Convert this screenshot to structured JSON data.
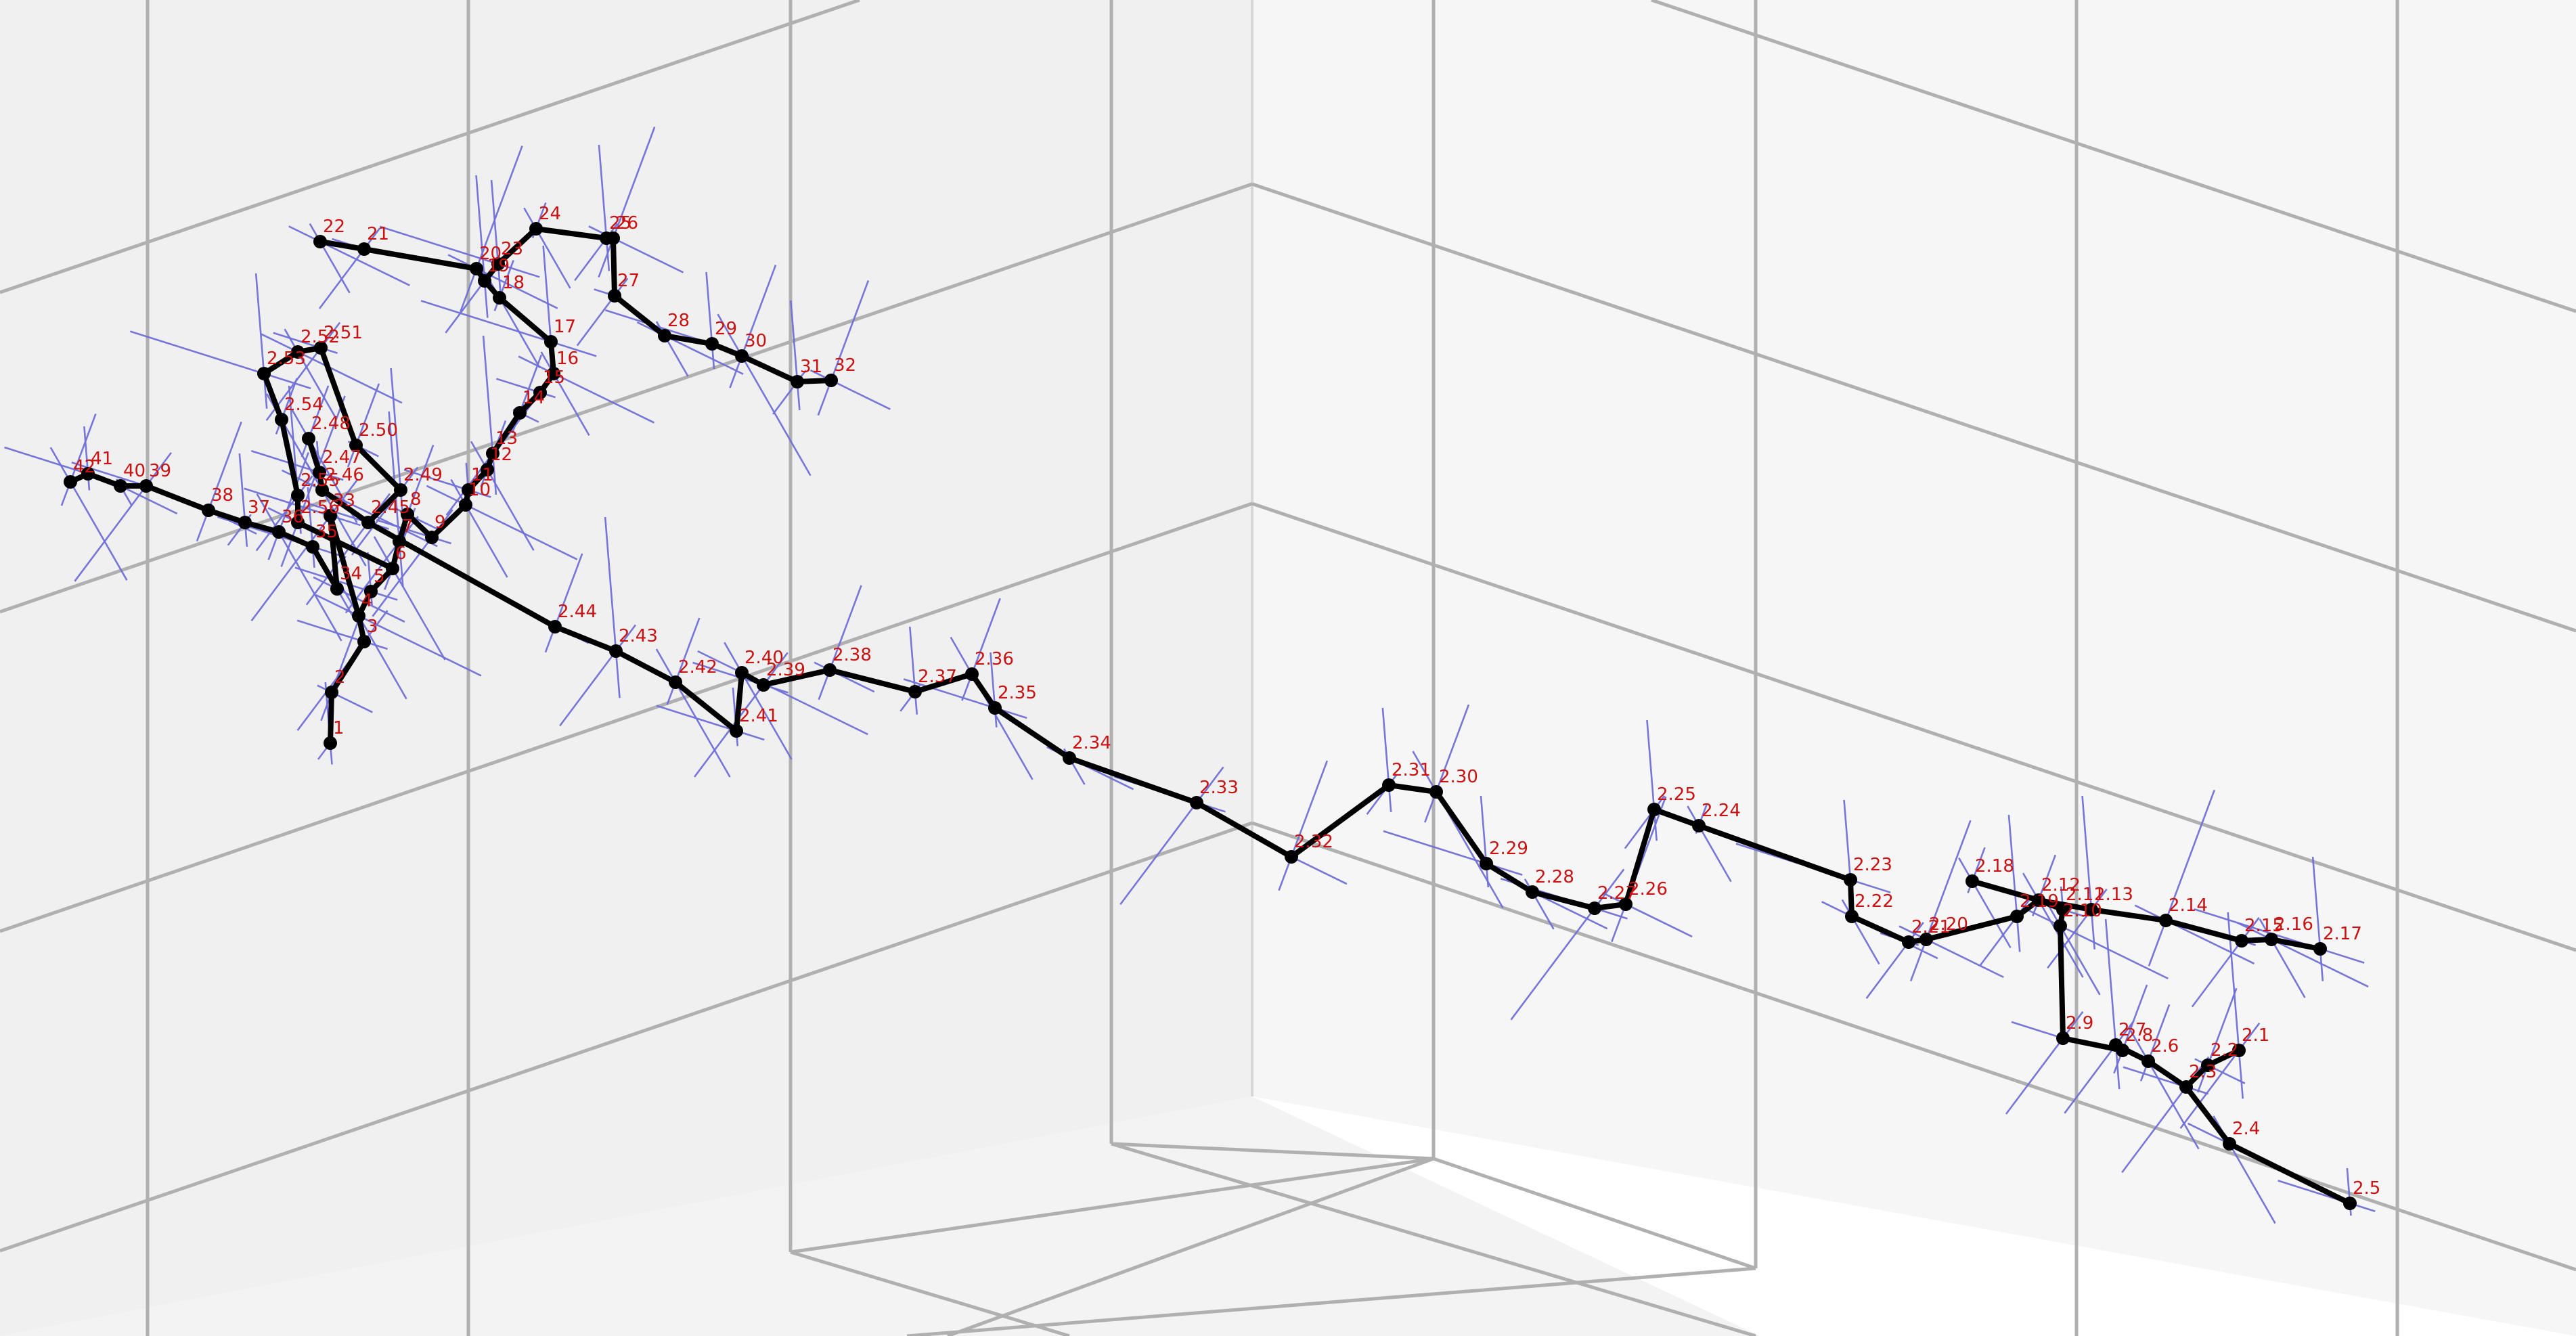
{
  "nodes": [
    {
      "id": "1",
      "label": "1"
    },
    {
      "id": "2",
      "label": "2"
    },
    {
      "id": "3",
      "label": "3"
    },
    {
      "id": "4",
      "label": "4"
    },
    {
      "id": "5",
      "label": "5"
    },
    {
      "id": "6",
      "label": "6"
    },
    {
      "id": "7",
      "label": "7"
    },
    {
      "id": "8",
      "label": "8"
    },
    {
      "id": "9",
      "label": "9"
    },
    {
      "id": "10",
      "label": "10"
    },
    {
      "id": "11",
      "label": "11"
    },
    {
      "id": "12",
      "label": "12"
    },
    {
      "id": "13",
      "label": "13"
    },
    {
      "id": "14",
      "label": "14"
    },
    {
      "id": "15",
      "label": "15"
    },
    {
      "id": "16",
      "label": "16"
    },
    {
      "id": "17",
      "label": "17"
    },
    {
      "id": "18",
      "label": "18"
    },
    {
      "id": "19",
      "label": "19"
    },
    {
      "id": "20",
      "label": "20"
    },
    {
      "id": "21",
      "label": "21"
    },
    {
      "id": "22",
      "label": "22"
    },
    {
      "id": "23",
      "label": "23"
    },
    {
      "id": "24",
      "label": "24"
    },
    {
      "id": "25",
      "label": "25"
    },
    {
      "id": "26",
      "label": "26"
    },
    {
      "id": "27",
      "label": "27"
    },
    {
      "id": "28",
      "label": "28"
    },
    {
      "id": "29",
      "label": "29"
    },
    {
      "id": "30",
      "label": "30"
    },
    {
      "id": "31",
      "label": "31"
    },
    {
      "id": "32",
      "label": "32"
    },
    {
      "id": "33",
      "label": "33"
    },
    {
      "id": "34",
      "label": "34"
    },
    {
      "id": "35",
      "label": "35"
    },
    {
      "id": "36",
      "label": "36"
    },
    {
      "id": "37",
      "label": "37"
    },
    {
      "id": "38",
      "label": "38"
    },
    {
      "id": "39",
      "label": "39"
    },
    {
      "id": "40",
      "label": "40"
    },
    {
      "id": "41",
      "label": "41"
    },
    {
      "id": "42",
      "label": "42"
    },
    {
      "id": "2.1",
      "label": "2.1"
    },
    {
      "id": "2.2",
      "label": "2.2"
    },
    {
      "id": "2.3",
      "label": "2.3"
    },
    {
      "id": "2.4",
      "label": "2.4"
    },
    {
      "id": "2.5",
      "label": "2.5"
    },
    {
      "id": "2.6",
      "label": "2.6"
    },
    {
      "id": "2.7",
      "label": "2.7"
    },
    {
      "id": "2.8",
      "label": "2.8"
    },
    {
      "id": "2.9",
      "label": "2.9"
    },
    {
      "id": "2.10",
      "label": "2.10"
    },
    {
      "id": "2.11",
      "label": "2.11"
    },
    {
      "id": "2.12",
      "label": "2.12"
    },
    {
      "id": "2.13",
      "label": "2.13"
    },
    {
      "id": "2.14",
      "label": "2.14"
    },
    {
      "id": "2.15",
      "label": "2.15"
    },
    {
      "id": "2.16",
      "label": "2.16"
    },
    {
      "id": "2.17",
      "label": "2.17"
    },
    {
      "id": "2.18",
      "label": "2.18"
    },
    {
      "id": "2.19",
      "label": "2.19"
    },
    {
      "id": "2.20",
      "label": "2.20"
    },
    {
      "id": "2.21",
      "label": "2.21"
    },
    {
      "id": "2.22",
      "label": "2.22"
    },
    {
      "id": "2.23",
      "label": "2.23"
    },
    {
      "id": "2.24",
      "label": "2.24"
    },
    {
      "id": "2.25",
      "label": "2.25"
    },
    {
      "id": "2.26",
      "label": "2.26"
    },
    {
      "id": "2.27",
      "label": "2.27"
    },
    {
      "id": "2.28",
      "label": "2.28"
    },
    {
      "id": "2.29",
      "label": "2.29"
    },
    {
      "id": "2.30",
      "label": "2.30"
    },
    {
      "id": "2.31",
      "label": "2.31"
    },
    {
      "id": "2.32",
      "label": "2.32"
    },
    {
      "id": "2.33",
      "label": "2.33"
    },
    {
      "id": "2.34",
      "label": "2.34"
    },
    {
      "id": "2.35",
      "label": "2.35"
    },
    {
      "id": "2.36",
      "label": "2.36"
    },
    {
      "id": "2.37",
      "label": "2.37"
    },
    {
      "id": "2.38",
      "label": "2.38"
    },
    {
      "id": "2.39",
      "label": "2.39"
    },
    {
      "id": "2.40",
      "label": "2.40"
    },
    {
      "id": "2.41",
      "label": "2.41"
    },
    {
      "id": "2.42",
      "label": "2.42"
    },
    {
      "id": "2.43",
      "label": "2.43"
    },
    {
      "id": "2.44",
      "label": "2.44"
    },
    {
      "id": "2.45",
      "label": "2.45"
    },
    {
      "id": "2.46",
      "label": "2.46"
    },
    {
      "id": "2.47",
      "label": "2.47"
    },
    {
      "id": "2.48",
      "label": "2.48"
    },
    {
      "id": "2.49",
      "label": "2.49"
    },
    {
      "id": "2.50",
      "label": "2.50"
    },
    {
      "id": "2.51",
      "label": "2.51"
    },
    {
      "id": "2.52",
      "label": "2.52"
    },
    {
      "id": "2.53",
      "label": "2.53"
    },
    {
      "id": "2.54",
      "label": "2.54"
    },
    {
      "id": "2.55",
      "label": "2.55"
    },
    {
      "id": "2.56",
      "label": "2.56"
    }
  ],
  "edges": [
    [
      "1",
      "2"
    ],
    [
      "2",
      "3"
    ],
    [
      "3",
      "4"
    ],
    [
      "4",
      "5"
    ],
    [
      "5",
      "6"
    ],
    [
      "6",
      "7"
    ],
    [
      "7",
      "8"
    ],
    [
      "8",
      "9"
    ],
    [
      "9",
      "10"
    ],
    [
      "10",
      "11"
    ],
    [
      "11",
      "12"
    ],
    [
      "12",
      "13"
    ],
    [
      "13",
      "14"
    ],
    [
      "14",
      "15"
    ],
    [
      "15",
      "16"
    ],
    [
      "16",
      "17"
    ],
    [
      "17",
      "18"
    ],
    [
      "18",
      "19"
    ],
    [
      "19",
      "20"
    ],
    [
      "20",
      "21"
    ],
    [
      "21",
      "22"
    ],
    [
      "19",
      "23"
    ],
    [
      "23",
      "24"
    ],
    [
      "24",
      "25"
    ],
    [
      "25",
      "26"
    ],
    [
      "26",
      "27"
    ],
    [
      "27",
      "28"
    ],
    [
      "28",
      "29"
    ],
    [
      "29",
      "30"
    ],
    [
      "30",
      "31"
    ],
    [
      "31",
      "32"
    ],
    [
      "4",
      "33"
    ],
    [
      "33",
      "34"
    ],
    [
      "34",
      "35"
    ],
    [
      "35",
      "36"
    ],
    [
      "36",
      "37"
    ],
    [
      "37",
      "38"
    ],
    [
      "38",
      "39"
    ],
    [
      "39",
      "40"
    ],
    [
      "40",
      "41"
    ],
    [
      "41",
      "42"
    ],
    [
      "2.1",
      "2.2"
    ],
    [
      "2.2",
      "2.3"
    ],
    [
      "2.3",
      "2.4"
    ],
    [
      "2.4",
      "2.5"
    ],
    [
      "2.3",
      "2.6"
    ],
    [
      "2.6",
      "2.7"
    ],
    [
      "2.7",
      "2.8"
    ],
    [
      "2.8",
      "2.9"
    ],
    [
      "2.9",
      "2.10"
    ],
    [
      "2.10",
      "2.11"
    ],
    [
      "2.11",
      "2.12"
    ],
    [
      "2.12",
      "2.13"
    ],
    [
      "2.13",
      "2.14"
    ],
    [
      "2.14",
      "2.15"
    ],
    [
      "2.15",
      "2.16"
    ],
    [
      "2.16",
      "2.17"
    ],
    [
      "2.12",
      "2.18"
    ],
    [
      "2.12",
      "2.19"
    ],
    [
      "2.19",
      "2.20"
    ],
    [
      "2.20",
      "2.21"
    ],
    [
      "2.21",
      "2.22"
    ],
    [
      "2.22",
      "2.23"
    ],
    [
      "2.23",
      "2.24"
    ],
    [
      "2.24",
      "2.25"
    ],
    [
      "2.25",
      "2.26"
    ],
    [
      "2.26",
      "2.27"
    ],
    [
      "2.27",
      "2.28"
    ],
    [
      "2.28",
      "2.29"
    ],
    [
      "2.29",
      "2.30"
    ],
    [
      "2.30",
      "2.31"
    ],
    [
      "2.31",
      "2.32"
    ],
    [
      "2.32",
      "2.33"
    ],
    [
      "2.33",
      "2.34"
    ],
    [
      "2.34",
      "2.35"
    ],
    [
      "2.35",
      "2.36"
    ],
    [
      "2.36",
      "2.37"
    ],
    [
      "2.37",
      "2.38"
    ],
    [
      "2.38",
      "2.39"
    ],
    [
      "2.39",
      "2.40"
    ],
    [
      "2.40",
      "2.41"
    ],
    [
      "2.41",
      "2.42"
    ],
    [
      "2.42",
      "2.43"
    ],
    [
      "2.43",
      "2.44"
    ],
    [
      "2.44",
      "2.45"
    ],
    [
      "2.45",
      "2.46"
    ],
    [
      "2.46",
      "2.47"
    ],
    [
      "2.47",
      "2.48"
    ],
    [
      "2.45",
      "2.49"
    ],
    [
      "2.49",
      "2.50"
    ],
    [
      "2.50",
      "2.51"
    ],
    [
      "2.51",
      "2.52"
    ],
    [
      "2.52",
      "2.53"
    ],
    [
      "2.53",
      "2.54"
    ],
    [
      "2.54",
      "2.55"
    ],
    [
      "2.55",
      "2.56"
    ],
    [
      "2.56",
      "6"
    ]
  ],
  "colors": {
    "edge": "#000000",
    "node": "#000000",
    "label": "#cc1111",
    "ray": "#7070d8",
    "grid": "#b0b0b0"
  }
}
